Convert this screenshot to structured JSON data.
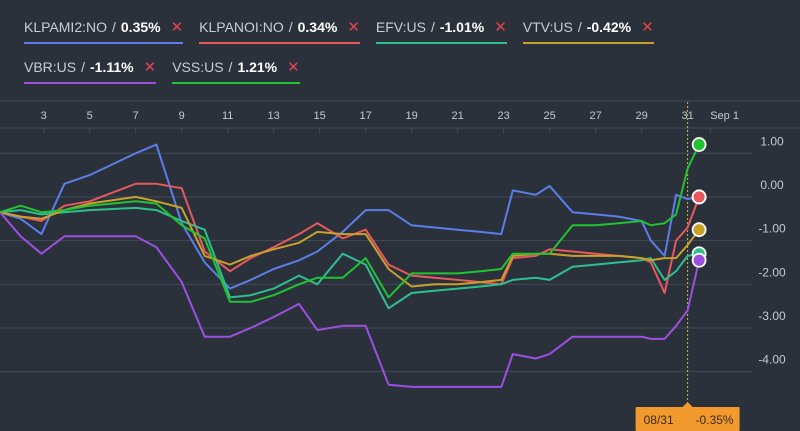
{
  "legend": [
    {
      "symbol": "KLPAMI2:NO",
      "change": "0.35%",
      "color": "#5b7ee8",
      "remove_icon": "close-icon"
    },
    {
      "symbol": "KLPANOI:NO",
      "change": "0.34%",
      "color": "#e8585f",
      "remove_icon": "close-icon"
    },
    {
      "symbol": "EFV:US",
      "change": "-1.01%",
      "color": "#2fbf8f",
      "remove_icon": "close-icon"
    },
    {
      "symbol": "VTV:US",
      "change": "-0.42%",
      "color": "#c9a12a",
      "remove_icon": "close-icon"
    },
    {
      "symbol": "VBR:US",
      "change": "-1.11%",
      "color": "#9d4fe0",
      "remove_icon": "close-icon"
    },
    {
      "symbol": "VSS:US",
      "change": "1.21%",
      "color": "#22c232",
      "remove_icon": "close-icon"
    }
  ],
  "separator": "/",
  "close_glyph": "✕",
  "tooltip": {
    "date": "08/31",
    "value": "-0.35%",
    "color": "#f39a2f"
  },
  "colors": {
    "background": "#2a313b",
    "grid": "#434b57",
    "crosshair": "#d6b53a",
    "axis_text": "#c3c9d0"
  },
  "chart_data": {
    "type": "line",
    "x_tick_labels": [
      "3",
      "5",
      "7",
      "9",
      "11",
      "13",
      "15",
      "17",
      "19",
      "21",
      "23",
      "25",
      "27",
      "29",
      "31",
      "Sep 1"
    ],
    "x_tick_days": [
      3,
      5,
      7,
      9,
      11,
      13,
      15,
      17,
      19,
      21,
      23,
      25,
      27,
      29,
      31,
      32
    ],
    "y_tick_labels": [
      "1.00",
      "0.00",
      "-1.00",
      "-2.00",
      "-3.00",
      "-4.00"
    ],
    "y_tick_values": [
      1,
      0,
      -1,
      -2,
      -3,
      -4
    ],
    "ylim": [
      -4.65,
      1.35
    ],
    "xlim": [
      1.1,
      33.8
    ],
    "crosshair_day": 31,
    "series": [
      {
        "name": "KLPAMI2:NO",
        "color": "#5b7ee8",
        "end_value": 0.0,
        "x": [
          1.1,
          2.0,
          2.9,
          3.9,
          5.0,
          7.0,
          7.9,
          9.0,
          10.0,
          11.1,
          12.0,
          13.0,
          14.1,
          14.9,
          16.0,
          17.0,
          18.0,
          19.0,
          20.0,
          21.0,
          22.0,
          22.9,
          23.4,
          24.4,
          25.0,
          26.0,
          27.0,
          28.0,
          29.0,
          29.4,
          30.0,
          30.5,
          31.0,
          31.5
        ],
        "y": [
          -0.35,
          -0.5,
          -0.85,
          0.3,
          0.5,
          1.0,
          1.2,
          -0.6,
          -1.5,
          -2.1,
          -1.9,
          -1.65,
          -1.45,
          -1.25,
          -0.8,
          -0.3,
          -0.3,
          -0.65,
          -0.7,
          -0.75,
          -0.8,
          -0.85,
          0.15,
          0.05,
          0.25,
          -0.35,
          -0.4,
          -0.45,
          -0.55,
          -1.0,
          -1.35,
          0.05,
          -0.05,
          0.0
        ]
      },
      {
        "name": "KLPANOI:NO",
        "color": "#e8585f",
        "end_value": 0.0,
        "x": [
          1.1,
          2.0,
          2.9,
          3.9,
          5.0,
          7.0,
          7.9,
          9.0,
          10.0,
          11.1,
          12.0,
          13.0,
          14.1,
          14.9,
          16.0,
          17.0,
          18.0,
          19.0,
          20.0,
          21.0,
          22.0,
          22.9,
          23.4,
          24.4,
          25.0,
          26.0,
          27.0,
          28.0,
          29.0,
          29.4,
          30.0,
          30.5,
          31.0,
          31.5
        ],
        "y": [
          -0.35,
          -0.45,
          -0.55,
          -0.2,
          -0.1,
          0.3,
          0.3,
          0.2,
          -1.25,
          -1.7,
          -1.4,
          -1.15,
          -0.85,
          -0.6,
          -0.95,
          -0.75,
          -1.55,
          -1.8,
          -1.85,
          -1.9,
          -1.95,
          -2.0,
          -1.4,
          -1.35,
          -1.2,
          -1.25,
          -1.3,
          -1.35,
          -1.4,
          -1.5,
          -2.2,
          -1.0,
          -0.7,
          0.0
        ]
      },
      {
        "name": "EFV:US",
        "color": "#2fbf8f",
        "end_value": -1.3,
        "x": [
          1.1,
          2.0,
          2.9,
          3.9,
          5.0,
          7.0,
          7.9,
          9.0,
          10.0,
          11.1,
          12.0,
          13.0,
          14.1,
          14.9,
          16.0,
          17.0,
          18.0,
          19.0,
          20.0,
          21.0,
          22.0,
          22.9,
          23.4,
          24.4,
          25.0,
          26.0,
          27.0,
          28.0,
          29.0,
          29.4,
          30.0,
          30.5,
          31.0,
          31.5
        ],
        "y": [
          -0.35,
          -0.3,
          -0.4,
          -0.35,
          -0.3,
          -0.25,
          -0.3,
          -0.55,
          -0.75,
          -2.3,
          -2.25,
          -2.1,
          -1.8,
          -2.0,
          -1.3,
          -1.55,
          -2.55,
          -2.2,
          -2.15,
          -2.1,
          -2.05,
          -2.0,
          -1.9,
          -1.85,
          -1.9,
          -1.6,
          -1.55,
          -1.5,
          -1.45,
          -1.4,
          -1.9,
          -1.7,
          -1.35,
          -1.3
        ]
      },
      {
        "name": "VTV:US",
        "color": "#c9a12a",
        "end_value": -0.75,
        "x": [
          1.1,
          2.0,
          2.9,
          3.9,
          5.0,
          7.0,
          7.9,
          9.0,
          10.0,
          11.1,
          12.0,
          13.0,
          14.1,
          14.9,
          16.0,
          17.0,
          18.0,
          19.0,
          20.0,
          21.0,
          22.0,
          22.9,
          23.4,
          24.4,
          25.0,
          26.0,
          27.0,
          28.0,
          29.0,
          29.4,
          30.0,
          30.5,
          31.0,
          31.5
        ],
        "y": [
          -0.35,
          -0.45,
          -0.5,
          -0.3,
          -0.15,
          0.0,
          -0.1,
          -0.25,
          -1.35,
          -1.55,
          -1.35,
          -1.2,
          -1.05,
          -0.8,
          -0.85,
          -0.85,
          -1.65,
          -2.05,
          -2.0,
          -2.0,
          -1.95,
          -1.9,
          -1.35,
          -1.3,
          -1.3,
          -1.35,
          -1.35,
          -1.35,
          -1.4,
          -1.45,
          -1.4,
          -1.4,
          -1.1,
          -0.75
        ]
      },
      {
        "name": "VBR:US",
        "color": "#9d4fe0",
        "end_value": -1.45,
        "x": [
          1.1,
          2.0,
          2.9,
          3.9,
          5.0,
          7.0,
          7.9,
          9.0,
          10.0,
          11.1,
          12.0,
          13.0,
          14.1,
          14.9,
          16.0,
          17.0,
          18.0,
          19.0,
          20.0,
          21.0,
          22.0,
          22.9,
          23.4,
          24.4,
          25.0,
          26.0,
          27.0,
          28.0,
          29.0,
          29.4,
          30.0,
          30.5,
          31.0,
          31.5
        ],
        "y": [
          -0.35,
          -0.9,
          -1.3,
          -0.9,
          -0.9,
          -0.9,
          -1.15,
          -1.95,
          -3.2,
          -3.2,
          -3.0,
          -2.75,
          -2.45,
          -3.05,
          -2.95,
          -2.95,
          -4.3,
          -4.35,
          -4.35,
          -4.35,
          -4.35,
          -4.35,
          -3.6,
          -3.7,
          -3.6,
          -3.2,
          -3.2,
          -3.2,
          -3.2,
          -3.25,
          -3.25,
          -2.95,
          -2.6,
          -1.45
        ]
      },
      {
        "name": "VSS:US",
        "color": "#22c232",
        "end_value": 1.2,
        "x": [
          1.1,
          2.0,
          2.9,
          3.9,
          5.0,
          7.0,
          7.9,
          9.0,
          10.0,
          11.1,
          12.0,
          13.0,
          14.1,
          14.9,
          16.0,
          17.0,
          18.0,
          19.0,
          20.0,
          21.0,
          22.0,
          22.9,
          23.4,
          24.4,
          25.0,
          26.0,
          27.0,
          28.0,
          29.0,
          29.4,
          30.0,
          30.5,
          31.0,
          31.5
        ],
        "y": [
          -0.35,
          -0.2,
          -0.35,
          -0.3,
          -0.2,
          -0.1,
          -0.15,
          -0.65,
          -0.95,
          -2.4,
          -2.4,
          -2.25,
          -2.0,
          -1.85,
          -1.85,
          -1.4,
          -2.3,
          -1.75,
          -1.75,
          -1.75,
          -1.7,
          -1.65,
          -1.3,
          -1.3,
          -1.3,
          -0.65,
          -0.65,
          -0.6,
          -0.55,
          -0.65,
          -0.6,
          -0.4,
          0.65,
          1.2
        ]
      }
    ]
  }
}
